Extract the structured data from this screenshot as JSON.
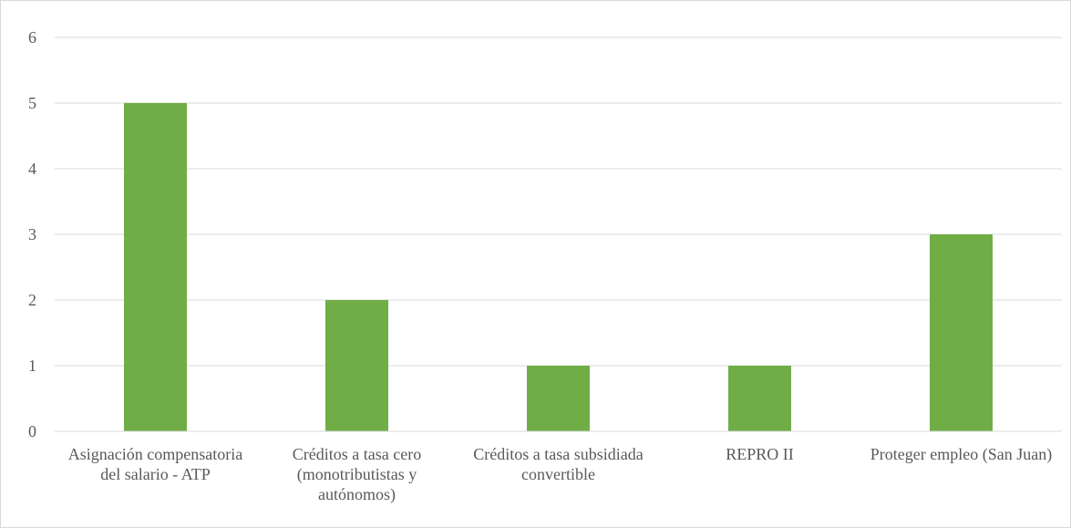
{
  "chart_data": {
    "type": "bar",
    "title": "",
    "xlabel": "",
    "ylabel": "",
    "categories": [
      "Asignación compensatoria del salario - ATP",
      "Créditos a tasa cero (monotributistas y autónomos)",
      "Créditos a tasa subsidiada convertible",
      "REPRO II",
      "Proteger empleo (San Juan)"
    ],
    "values": [
      5,
      2,
      1,
      1,
      3
    ],
    "ylim": [
      0,
      6
    ],
    "yticks": [
      0,
      1,
      2,
      3,
      4,
      5,
      6
    ],
    "grid": true,
    "legend": "none",
    "colors": {
      "bar": "#70AD47",
      "grid": "#D9D9D9",
      "text": "#595959"
    }
  }
}
